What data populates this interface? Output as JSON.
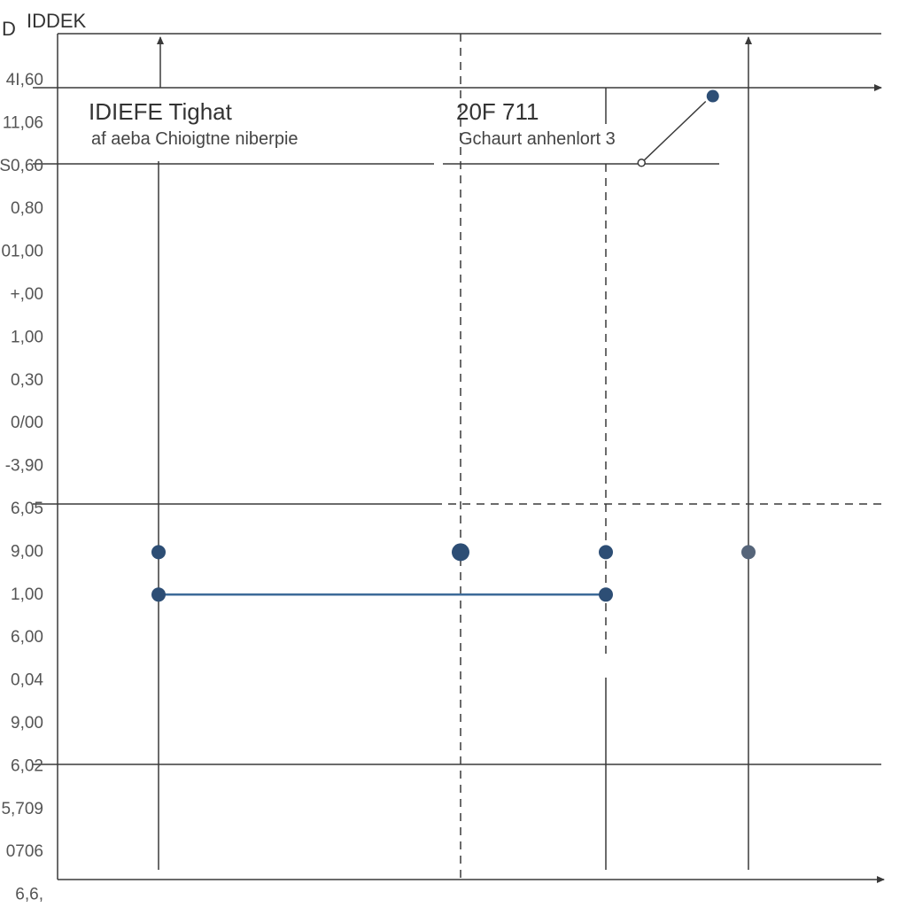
{
  "chart_data": {
    "type": "line",
    "corner_labels": {
      "left": "D",
      "right": "IDDEK"
    },
    "title_left": "IDIEFE Tighat",
    "subtitle_left": "af aeba Chioigtne niberpie",
    "title_right": "20F 711",
    "subtitle_right": "Gchaurt anhenlort 3",
    "y_tick_labels": [
      "4I,60",
      "11,06",
      "S0,60",
      "0,80",
      "01,00",
      "+,00",
      "1,00",
      "0,30",
      "0/00",
      "-3,90",
      "6,05",
      "9,00",
      "1,00",
      "6,00",
      "0,04",
      "9,00",
      "6,02",
      "5,709",
      "0706",
      "6,6,"
    ],
    "grid": true,
    "points_row_a": [
      {
        "column": 1,
        "row": 11
      },
      {
        "column": 2,
        "row": 11
      },
      {
        "column": 3,
        "row": 11
      },
      {
        "column": 4,
        "row": 11
      }
    ],
    "segment_row_b": [
      {
        "column": 1,
        "row": 12
      },
      {
        "column": 3,
        "row": 12
      }
    ],
    "annotation_link": [
      {
        "column": 3.25,
        "row": 2
      },
      {
        "column": 3.75,
        "row": 0.3
      }
    ],
    "colors": {
      "axis": "#3a3a3a",
      "point": "#2d4e75",
      "point_alt": "#56657a",
      "segment": "#3c6a98"
    }
  }
}
